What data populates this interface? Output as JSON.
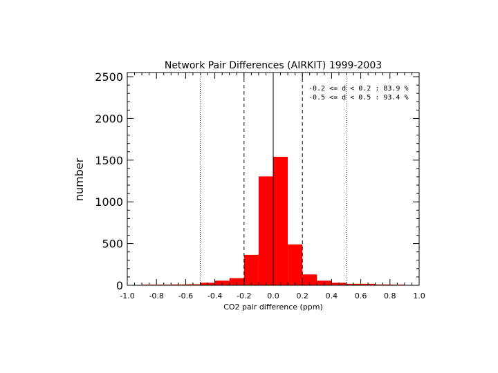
{
  "chart_data": {
    "type": "bar",
    "title": "Network Pair Differences (AIRKIT) 1999-2003",
    "xlabel": "CO2 pair difference (ppm)",
    "ylabel": "number",
    "xlim": [
      -1.0,
      1.0
    ],
    "ylim": [
      0,
      2550
    ],
    "x_ticks": [
      -1.0,
      -0.8,
      -0.6,
      -0.4,
      -0.2,
      0.0,
      0.2,
      0.4,
      0.6,
      0.8,
      1.0
    ],
    "x_tick_labels": [
      "-1.0",
      "-0.8",
      "-0.6",
      "-0.4",
      "-0.2",
      "0.0",
      "0.2",
      "0.4",
      "0.6",
      "0.8",
      "1.0"
    ],
    "y_ticks": [
      0,
      500,
      1000,
      1500,
      2000,
      2500
    ],
    "y_tick_labels": [
      "0",
      "500",
      "1000",
      "1500",
      "2000",
      "2500"
    ],
    "bar_color": "#ff0000",
    "bin_width": 0.1,
    "bins": [
      {
        "x0": -1.0,
        "x1": -0.9,
        "value": 3
      },
      {
        "x0": -0.9,
        "x1": -0.8,
        "value": 8
      },
      {
        "x0": -0.8,
        "x1": -0.7,
        "value": 8
      },
      {
        "x0": -0.7,
        "x1": -0.6,
        "value": 10
      },
      {
        "x0": -0.6,
        "x1": -0.5,
        "value": 12
      },
      {
        "x0": -0.5,
        "x1": -0.4,
        "value": 30
      },
      {
        "x0": -0.4,
        "x1": -0.3,
        "value": 55
      },
      {
        "x0": -0.3,
        "x1": -0.2,
        "value": 85
      },
      {
        "x0": -0.2,
        "x1": -0.1,
        "value": 365
      },
      {
        "x0": -0.1,
        "x1": 0.0,
        "value": 1305
      },
      {
        "x0": 0.0,
        "x1": 0.1,
        "value": 1540
      },
      {
        "x0": 0.1,
        "x1": 0.2,
        "value": 490
      },
      {
        "x0": 0.2,
        "x1": 0.3,
        "value": 130
      },
      {
        "x0": 0.3,
        "x1": 0.4,
        "value": 55
      },
      {
        "x0": 0.4,
        "x1": 0.5,
        "value": 30
      },
      {
        "x0": 0.5,
        "x1": 0.6,
        "value": 18
      },
      {
        "x0": 0.6,
        "x1": 0.7,
        "value": 18
      },
      {
        "x0": 0.7,
        "x1": 0.8,
        "value": 10
      },
      {
        "x0": 0.8,
        "x1": 0.9,
        "value": 8
      },
      {
        "x0": 0.9,
        "x1": 1.0,
        "value": 3
      }
    ],
    "reference_lines": [
      {
        "x": -0.5,
        "style": "dotted"
      },
      {
        "x": -0.2,
        "style": "dashed"
      },
      {
        "x": 0.0,
        "style": "solid"
      },
      {
        "x": 0.2,
        "style": "dashed"
      },
      {
        "x": 0.5,
        "style": "dotted"
      }
    ],
    "annotations": [
      "-0.2 <= d < 0.2 : 83.9 %",
      "-0.5 <= d < 0.5 : 93.4 %"
    ]
  }
}
